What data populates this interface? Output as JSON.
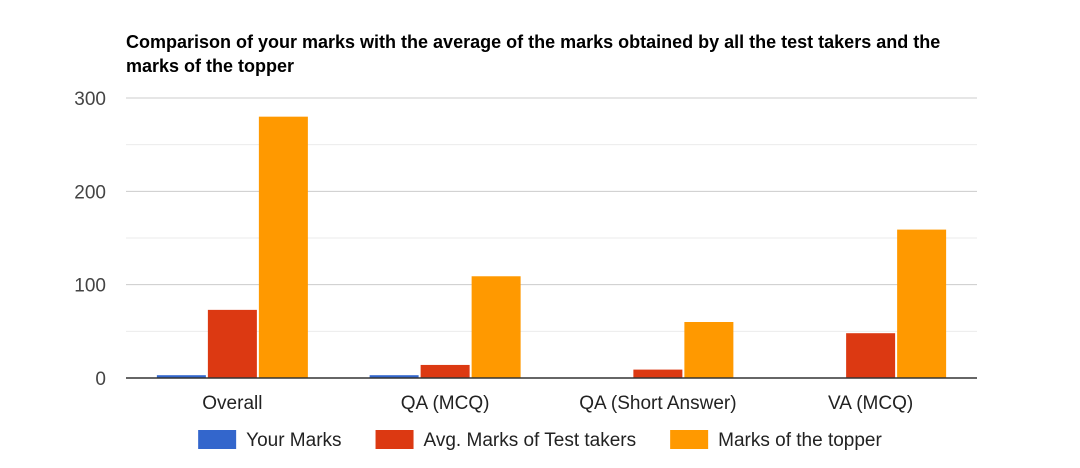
{
  "chart_data": {
    "type": "bar",
    "title": "Comparison of your marks with the average of the marks obtained by all the test takers and the marks of the topper",
    "xlabel": "",
    "ylabel": "",
    "ylim": [
      0,
      300
    ],
    "yticks": [
      0,
      100,
      200,
      300
    ],
    "grid": true,
    "legend_position": "bottom",
    "categories": [
      "Overall",
      "QA (MCQ)",
      "QA (Short Answer)",
      "VA (MCQ)"
    ],
    "series": [
      {
        "name": "Your Marks",
        "color": "#3366cc",
        "values": [
          3,
          3,
          0,
          0
        ]
      },
      {
        "name": "Avg. Marks of Test takers",
        "color": "#dc3912",
        "values": [
          73,
          14,
          9,
          48
        ]
      },
      {
        "name": "Marks of the topper",
        "color": "#ff9900",
        "values": [
          280,
          109,
          60,
          159
        ]
      }
    ]
  }
}
